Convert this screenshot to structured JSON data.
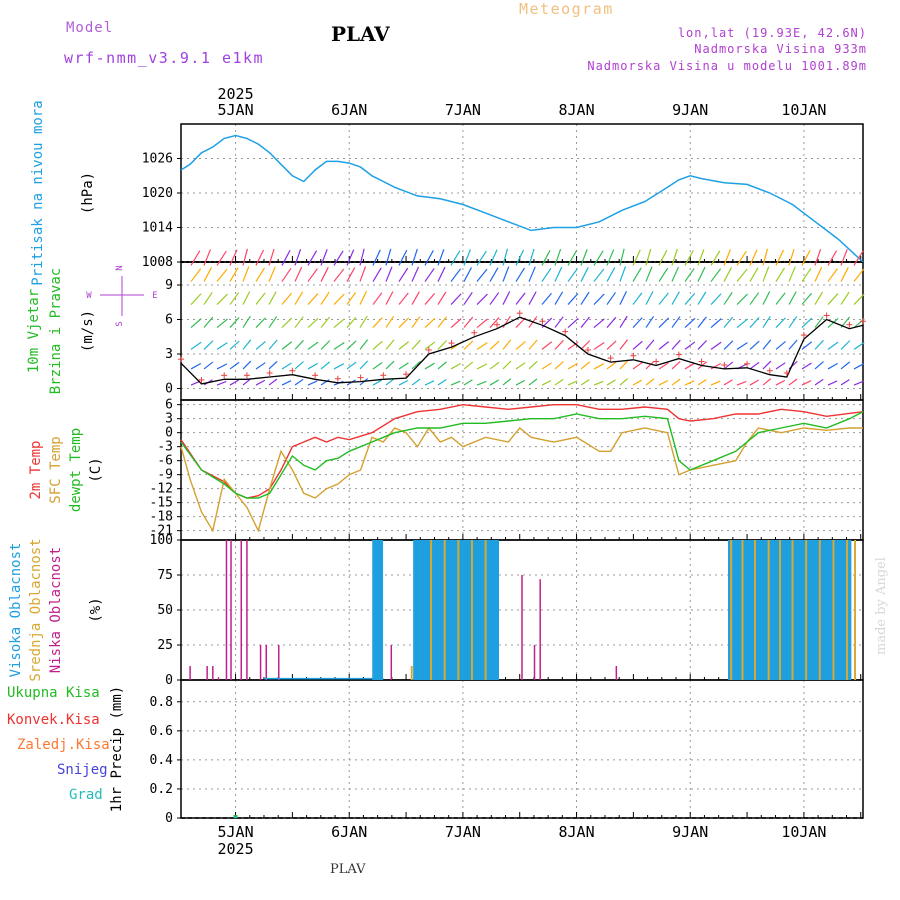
{
  "header": {
    "model_label": "Model",
    "model_name": "wrf-nmm_v3.9.1 e1km",
    "station": "PLAV",
    "title": "Meteogram",
    "lonlat": "lon,lat (19.93E, 42.6N)",
    "elevation": "Nadmorska Visina 933m",
    "model_elevation": "Nadmorska Visina u modelu 1001.89m"
  },
  "footer": {
    "station": "PLAV",
    "signature": "made by Angel"
  },
  "time_axis": {
    "year": "2025",
    "days": [
      "5JAN",
      "6JAN",
      "7JAN",
      "8JAN",
      "9JAN",
      "10JAN"
    ],
    "range_days": [
      4.52,
      10.52
    ]
  },
  "colors": {
    "pressure": "#1ea0e6",
    "wind_label": "#22bb22",
    "temp2m": "#ee3333",
    "sfc_temp": "#d4a030",
    "dewpt": "#22bb22",
    "cloud_high": "#1e9fe0",
    "cloud_mid": "#d8a830",
    "cloud_low": "#c0208c",
    "precip_total": "#22bb22",
    "precip_conv": "#ee3333",
    "precip_freezing": "#ff7733",
    "precip_snow": "#4444dd",
    "precip_hail": "#22bbbb"
  },
  "chart_data": [
    {
      "type": "line",
      "title": "",
      "ylabel": [
        "Pritisak na nivou mora",
        "(hPa)"
      ],
      "yticks": [
        1008,
        1014,
        1020,
        1026
      ],
      "ylim": [
        1008,
        1032
      ],
      "grid": true,
      "series": [
        {
          "name": "Pritisak na nivou mora",
          "x": [
            4.52,
            4.6,
            4.7,
            4.8,
            4.9,
            5.0,
            5.1,
            5.2,
            5.3,
            5.4,
            5.5,
            5.6,
            5.7,
            5.8,
            5.9,
            6.0,
            6.1,
            6.2,
            6.3,
            6.4,
            6.6,
            6.8,
            7.0,
            7.2,
            7.4,
            7.6,
            7.8,
            8.0,
            8.2,
            8.4,
            8.6,
            8.8,
            8.9,
            9.0,
            9.1,
            9.3,
            9.5,
            9.7,
            9.9,
            10.1,
            10.3,
            10.52
          ],
          "values": [
            1024,
            1025,
            1027,
            1028,
            1029.5,
            1030,
            1029.5,
            1028.5,
            1027,
            1025,
            1023,
            1022,
            1024,
            1025.5,
            1025.5,
            1025.2,
            1024.5,
            1023,
            1022,
            1021,
            1019.5,
            1019,
            1018,
            1016.5,
            1015,
            1013.5,
            1014,
            1014,
            1015,
            1017,
            1018.5,
            1021,
            1022.3,
            1023,
            1022.5,
            1021.8,
            1021.5,
            1020,
            1018,
            1015,
            1012,
            1008
          ]
        }
      ]
    },
    {
      "type": "line",
      "title": "",
      "ylabel": [
        "10m Vjetar",
        "Brzina i Pravac",
        "(m/s)"
      ],
      "compass": [
        "N",
        "W",
        "E",
        "S"
      ],
      "yticks": [
        0,
        3,
        6,
        9
      ],
      "ylim": [
        -1,
        11
      ],
      "grid": true,
      "series": [
        {
          "name": "10m Vjetar",
          "x": [
            4.52,
            4.7,
            4.9,
            5.1,
            5.3,
            5.5,
            5.7,
            5.9,
            6.1,
            6.3,
            6.5,
            6.7,
            6.9,
            7.1,
            7.3,
            7.5,
            7.7,
            7.9,
            8.1,
            8.3,
            8.5,
            8.7,
            8.9,
            9.1,
            9.3,
            9.5,
            9.7,
            9.85,
            10.0,
            10.2,
            10.4,
            10.52
          ],
          "values": [
            2.2,
            0.4,
            0.8,
            0.8,
            1.0,
            1.2,
            0.8,
            0.5,
            0.6,
            0.8,
            0.9,
            3.0,
            3.6,
            4.5,
            5.2,
            6.2,
            5.5,
            4.6,
            3.0,
            2.3,
            2.5,
            2.0,
            2.6,
            2.0,
            1.7,
            1.8,
            1.2,
            1.0,
            4.3,
            6.0,
            5.2,
            5.5
          ]
        }
      ]
    },
    {
      "type": "line",
      "title": "",
      "ylabel": [
        "2m Temp",
        "SFC Temp",
        "dewpt Temp",
        "(C)"
      ],
      "yticks": [
        -21,
        -18,
        -15,
        -12,
        -9,
        -6,
        -3,
        0,
        3,
        6
      ],
      "ylim": [
        -23,
        7
      ],
      "grid": true,
      "series": [
        {
          "name": "2m Temp",
          "x": [
            4.52,
            4.7,
            4.9,
            5.0,
            5.1,
            5.2,
            5.3,
            5.4,
            5.5,
            5.6,
            5.7,
            5.8,
            5.9,
            6.0,
            6.2,
            6.4,
            6.6,
            6.8,
            7.0,
            7.2,
            7.4,
            7.6,
            7.8,
            8.0,
            8.2,
            8.4,
            8.6,
            8.8,
            8.9,
            9.0,
            9.2,
            9.4,
            9.6,
            9.8,
            10.0,
            10.2,
            10.52
          ],
          "values": [
            -1.5,
            -8,
            -10.5,
            -13,
            -14,
            -13.5,
            -12,
            -8,
            -3,
            -2,
            -1,
            -2,
            -1,
            -1.5,
            0,
            3,
            4.5,
            5,
            6,
            5.5,
            5,
            5.5,
            6,
            6,
            5,
            5,
            5.5,
            5,
            3,
            2.5,
            3,
            4,
            4,
            5,
            4.5,
            3.5,
            4.5
          ]
        },
        {
          "name": "SFC Temp",
          "x": [
            4.52,
            4.6,
            4.7,
            4.8,
            4.9,
            5.0,
            5.1,
            5.2,
            5.3,
            5.4,
            5.5,
            5.6,
            5.7,
            5.8,
            5.9,
            6.0,
            6.1,
            6.2,
            6.3,
            6.4,
            6.5,
            6.6,
            6.7,
            6.8,
            6.9,
            7.0,
            7.2,
            7.4,
            7.5,
            7.6,
            7.8,
            8.0,
            8.2,
            8.3,
            8.4,
            8.6,
            8.8,
            8.9,
            9.0,
            9.2,
            9.4,
            9.5,
            9.6,
            9.8,
            10.0,
            10.2,
            10.4,
            10.52
          ],
          "values": [
            -3,
            -10,
            -17,
            -21,
            -10,
            -13,
            -16,
            -21,
            -12,
            -4,
            -8,
            -13,
            -14,
            -12,
            -11,
            -9,
            -8,
            -1,
            -2,
            1,
            0,
            -3,
            1,
            -2,
            -1,
            -3,
            -1,
            -2,
            1,
            -1,
            -2,
            -1,
            -4,
            -4,
            0,
            1,
            0,
            -9,
            -8,
            -7,
            -6,
            -2,
            1,
            0,
            1,
            0.5,
            1,
            1
          ]
        },
        {
          "name": "dewpt Temp",
          "x": [
            4.52,
            4.7,
            4.9,
            5.0,
            5.1,
            5.2,
            5.3,
            5.4,
            5.5,
            5.6,
            5.7,
            5.8,
            5.9,
            6.0,
            6.2,
            6.4,
            6.6,
            6.8,
            7.0,
            7.2,
            7.4,
            7.6,
            7.8,
            8.0,
            8.2,
            8.4,
            8.6,
            8.8,
            8.9,
            9.0,
            9.2,
            9.4,
            9.6,
            9.8,
            10.0,
            10.2,
            10.4,
            10.52
          ],
          "values": [
            -2,
            -8,
            -11,
            -13,
            -14,
            -14,
            -13,
            -9,
            -5,
            -7,
            -8,
            -6,
            -5.5,
            -4,
            -2,
            0,
            1,
            1,
            2,
            2,
            2.5,
            3,
            3,
            4,
            3,
            3,
            3.5,
            3,
            -6,
            -8,
            -6,
            -4,
            0,
            1,
            2,
            1,
            3,
            4.5
          ]
        }
      ]
    },
    {
      "type": "bar",
      "title": "",
      "ylabel": [
        "Visoka Oblacnost",
        "Srednja Oblacnost",
        "Niska Oblacnost",
        "(%)"
      ],
      "yticks": [
        0,
        25,
        50,
        75,
        100
      ],
      "ylim": [
        0,
        100
      ],
      "grid": true,
      "series": [
        {
          "name": "Visoka Oblacnost",
          "x": [
            6.22,
            6.25,
            6.28,
            6.58,
            6.61,
            6.64,
            6.67,
            6.7,
            6.73,
            6.76,
            6.79,
            6.82,
            6.85,
            6.88,
            6.91,
            6.94,
            6.97,
            7.0,
            7.03,
            7.06,
            7.09,
            7.12,
            7.15,
            7.18,
            7.21,
            7.24,
            7.27,
            7.3,
            9.35,
            9.38,
            9.41,
            9.44,
            9.47,
            9.5,
            9.53,
            9.56,
            9.59,
            9.62,
            9.65,
            9.68,
            9.71,
            9.74,
            9.77,
            9.8,
            9.83,
            9.86,
            9.89,
            9.92,
            9.95,
            9.98,
            10.01,
            10.04,
            10.07,
            10.1,
            10.13,
            10.16,
            10.19,
            10.22,
            10.25,
            10.28,
            10.31,
            10.34,
            10.37,
            10.4
          ],
          "values": [
            100,
            100,
            100,
            100,
            100,
            100,
            100,
            100,
            100,
            100,
            100,
            100,
            100,
            100,
            100,
            100,
            100,
            100,
            100,
            100,
            100,
            100,
            100,
            100,
            100,
            100,
            100,
            100,
            100,
            100,
            100,
            100,
            100,
            100,
            100,
            100,
            100,
            100,
            100,
            100,
            100,
            100,
            100,
            100,
            100,
            100,
            100,
            100,
            100,
            100,
            100,
            100,
            100,
            100,
            100,
            100,
            100,
            100,
            100,
            100,
            100,
            100,
            100,
            100
          ]
        },
        {
          "name": "Srednja Oblacnost",
          "x": [
            6.55,
            6.72,
            6.84,
            6.96,
            7.08,
            7.2,
            9.36,
            9.46,
            9.57,
            9.69,
            9.79,
            9.9,
            10.02,
            10.14,
            10.26,
            10.38,
            10.45
          ],
          "values": [
            10,
            100,
            100,
            100,
            100,
            100,
            100,
            100,
            100,
            100,
            100,
            100,
            100,
            100,
            100,
            100,
            100
          ]
        },
        {
          "name": "Niska Oblacnost",
          "x": [
            4.6,
            4.75,
            4.8,
            4.92,
            4.96,
            5.05,
            5.1,
            5.22,
            5.27,
            5.38,
            6.37,
            7.52,
            7.63,
            7.68,
            8.35,
            4.85
          ],
          "values": [
            10,
            10,
            10,
            100,
            100,
            100,
            100,
            25,
            25,
            25,
            25,
            75,
            25,
            72,
            10,
            2
          ]
        }
      ]
    },
    {
      "type": "bar",
      "title": "",
      "ylabel": [
        "Ukupna Kisa",
        "Konvek.Kisa",
        "Zaledj.Kisa",
        "Snijeg",
        "Grad",
        "1hr Precip (mm)"
      ],
      "yticks": [
        0,
        0.2,
        0.4,
        0.6,
        0.8
      ],
      "ylim": [
        0,
        0.95
      ],
      "grid": true,
      "series": [
        {
          "name": "Ukupna Kisa",
          "x": [
            5.0
          ],
          "values": [
            0.02
          ]
        },
        {
          "name": "Konvek.Kisa",
          "x": [],
          "values": []
        },
        {
          "name": "Zaledj.Kisa",
          "x": [],
          "values": []
        },
        {
          "name": "Snijeg",
          "x": [],
          "values": []
        },
        {
          "name": "Grad",
          "x": [
            5.0
          ],
          "values": [
            0.01
          ]
        }
      ]
    }
  ]
}
